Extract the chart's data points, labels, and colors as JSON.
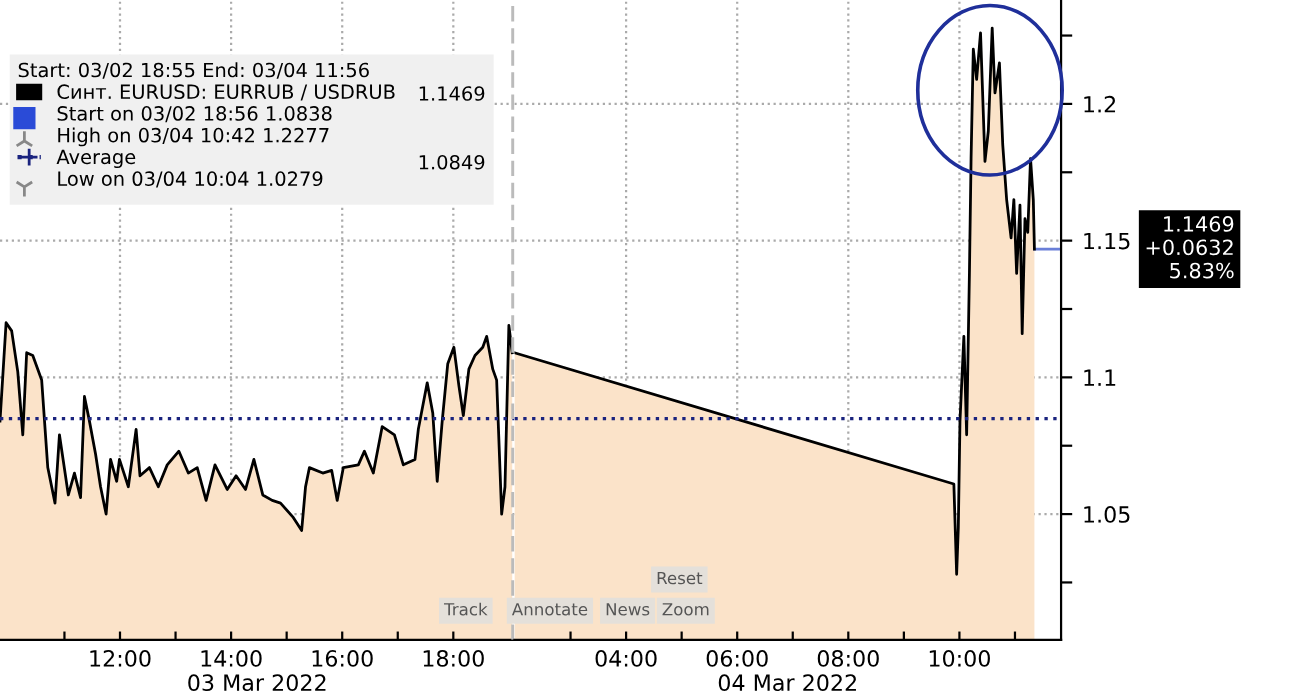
{
  "chart_data": [
    {
      "type": "area",
      "xlabel": "03 Mar 2022",
      "legend_title": "Start: 03/02 18:55 End: 03/04 11:56",
      "legend": "top left",
      "tick_labels": "x",
      "series": [
        {
          "name": "Синт. EURUSD: EURRUB / USDRUB",
          "color": "#000000",
          "x": [
            9.84,
            9.95,
            10.05,
            10.16,
            10.25,
            10.32,
            10.43,
            10.59,
            10.7,
            10.83,
            10.91,
            11.07,
            11.18,
            11.29,
            11.36,
            11.45,
            11.56,
            11.65,
            11.75,
            11.83,
            11.94,
            11.99,
            12.15,
            12.29,
            12.36,
            12.53,
            12.69,
            12.85,
            13.06,
            13.23,
            13.39,
            13.55,
            13.71,
            13.93,
            14.09,
            14.26,
            14.41,
            14.57,
            14.74,
            14.89,
            15.11,
            15.27,
            15.34,
            15.41,
            15.65,
            15.81,
            15.91,
            16.02,
            16.29,
            16.4,
            16.56,
            16.72,
            16.94,
            17.1,
            17.31,
            17.37,
            17.53,
            17.63,
            17.71,
            17.8,
            17.9,
            18.01,
            18.1,
            18.18,
            18.28,
            18.39,
            18.53,
            18.6,
            18.71,
            18.78,
            18.87,
            18.93,
            19.0,
            19.06
          ],
          "values": [
            1.084,
            1.12,
            1.117,
            1.102,
            1.079,
            1.109,
            1.108,
            1.099,
            1.067,
            1.054,
            1.079,
            1.057,
            1.065,
            1.056,
            1.093,
            1.084,
            1.072,
            1.06,
            1.05,
            1.07,
            1.062,
            1.07,
            1.06,
            1.081,
            1.064,
            1.067,
            1.06,
            1.068,
            1.073,
            1.065,
            1.067,
            1.055,
            1.068,
            1.059,
            1.064,
            1.059,
            1.07,
            1.057,
            1.055,
            1.054,
            1.049,
            1.044,
            1.06,
            1.067,
            1.065,
            1.066,
            1.055,
            1.067,
            1.068,
            1.073,
            1.065,
            1.082,
            1.079,
            1.068,
            1.07,
            1.081,
            1.098,
            1.087,
            1.062,
            1.084,
            1.105,
            1.111,
            1.097,
            1.086,
            1.103,
            1.108,
            1.111,
            1.115,
            1.103,
            1.099,
            1.05,
            1.06,
            1.119,
            1.109
          ]
        }
      ],
      "xlim": [
        9.84,
        19.1
      ],
      "xticks": [
        {
          "value": 11,
          "label": null
        },
        {
          "value": 12,
          "label": "12:00"
        },
        {
          "value": 13,
          "label": null
        },
        {
          "value": 14,
          "label": "14:00"
        },
        {
          "value": 15,
          "label": null
        },
        {
          "value": 16,
          "label": "16:00"
        },
        {
          "value": 17,
          "label": null
        },
        {
          "value": 18,
          "label": "18:00"
        }
      ],
      "ylim": [
        1.004,
        1.238
      ],
      "yticks": [
        1.05,
        1.1,
        1.15,
        1.2
      ],
      "grid": true,
      "ref_lines": [
        {
          "axis": "y",
          "value": 1.0849,
          "label": "Average",
          "color": "#1a237e",
          "line_style": "dotted"
        },
        {
          "axis": "x",
          "value": 19.08,
          "color": "#bbbbbb",
          "line_style": "dashed"
        }
      ],
      "annotations": [
        "Start on 03/02 18:56 1.0838",
        "High on 03/04 10:42 1.2277",
        "Low on 03/04 10:04 1.0279",
        "1.1469",
        "1.0849",
        "Track",
        "Annotate",
        "News",
        "Zoom",
        "Reset"
      ]
    },
    {
      "type": "area",
      "xlabel": "04 Mar 2022",
      "series": [
        {
          "type": "area",
          "color": "#000000",
          "x": [
            1.99,
            9.9,
            9.95,
            9.98,
            10.01,
            10.08,
            10.13,
            10.18,
            10.21,
            10.25,
            10.31,
            10.38,
            10.46,
            10.52,
            10.59,
            10.64,
            10.72,
            10.78,
            10.85,
            10.93,
            10.98,
            11.03,
            11.09,
            11.13,
            11.18,
            11.23,
            11.28,
            11.33,
            11.35
          ],
          "values": [
            1.109,
            1.061,
            1.028,
            1.045,
            1.084,
            1.115,
            1.079,
            1.138,
            1.18,
            1.22,
            1.209,
            1.226,
            1.179,
            1.19,
            1.2277,
            1.204,
            1.215,
            1.185,
            1.165,
            1.151,
            1.165,
            1.138,
            1.163,
            1.116,
            1.158,
            1.153,
            1.18,
            1.165,
            1.1469
          ]
        }
      ],
      "xlim": [
        1.99,
        11.83
      ],
      "xticks": [
        {
          "value": 3,
          "label": null
        },
        {
          "value": 4,
          "label": "04:00"
        },
        {
          "value": 5,
          "label": null
        },
        {
          "value": 6,
          "label": "06:00"
        },
        {
          "value": 7,
          "label": null
        },
        {
          "value": 8,
          "label": "08:00"
        },
        {
          "value": 9,
          "label": null
        },
        {
          "value": 10,
          "label": "10:00"
        },
        {
          "value": 11,
          "label": null
        }
      ],
      "ylim": [
        1.004,
        1.238
      ],
      "yticks": [
        {
          "value": 1.025,
          "label": null
        },
        1.05,
        {
          "value": 1.075,
          "label": null
        },
        1.1,
        {
          "value": 1.125,
          "label": null
        },
        1.15,
        {
          "value": 1.175,
          "label": null
        },
        1.2,
        {
          "value": 1.225,
          "label": null
        }
      ],
      "grid": true,
      "ref_lines": [
        {
          "axis": "y",
          "value": 1.0849,
          "color": "#1a237e",
          "line_style": "dotted"
        }
      ],
      "annotations": [
        "1.1469\n+0.0632\n5.83%"
      ]
    }
  ]
}
